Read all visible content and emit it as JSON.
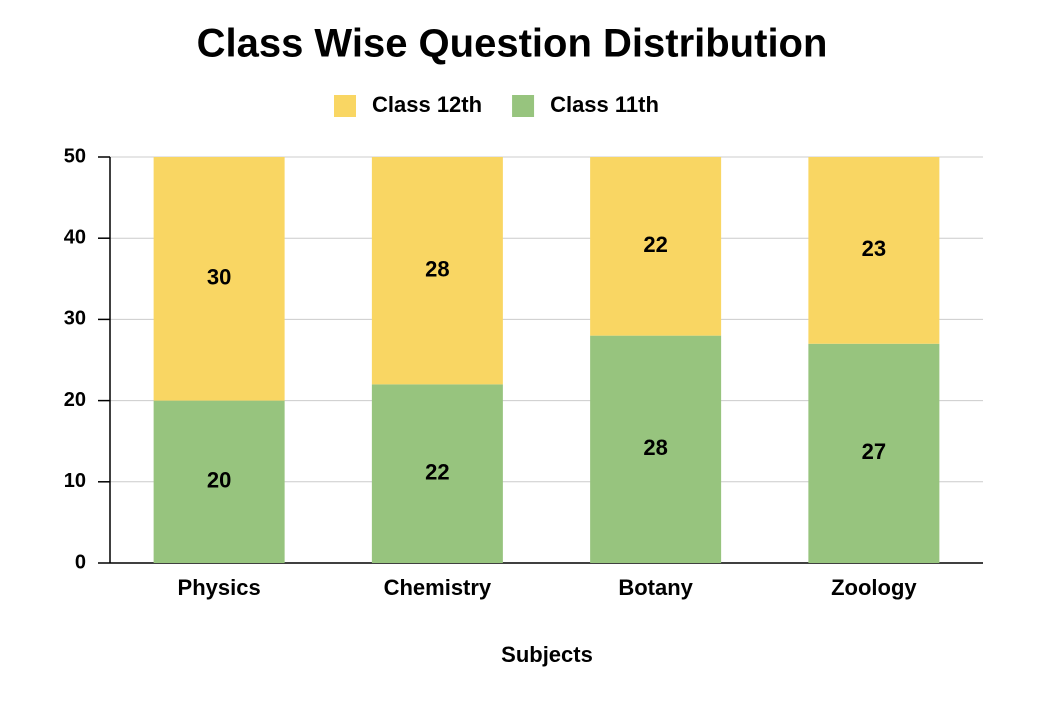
{
  "chart_data": {
    "type": "stacked_bar",
    "title": "Class Wise Question Distribution",
    "categories": [
      "Physics",
      "Chemistry",
      "Botany",
      "Zoology"
    ],
    "series": [
      {
        "name": "Class 11th",
        "color": "#97c47e",
        "values": [
          20,
          22,
          28,
          27
        ]
      },
      {
        "name": "Class 12th",
        "color": "#f9d663",
        "values": [
          30,
          28,
          22,
          23
        ]
      }
    ],
    "legend_order": [
      "Class 12th",
      "Class 11th"
    ],
    "xlabel": "Subjects",
    "ylim": [
      0,
      50
    ],
    "yticks": [
      0,
      10,
      20,
      30,
      40,
      50
    ],
    "grid": true,
    "legend": "top"
  }
}
